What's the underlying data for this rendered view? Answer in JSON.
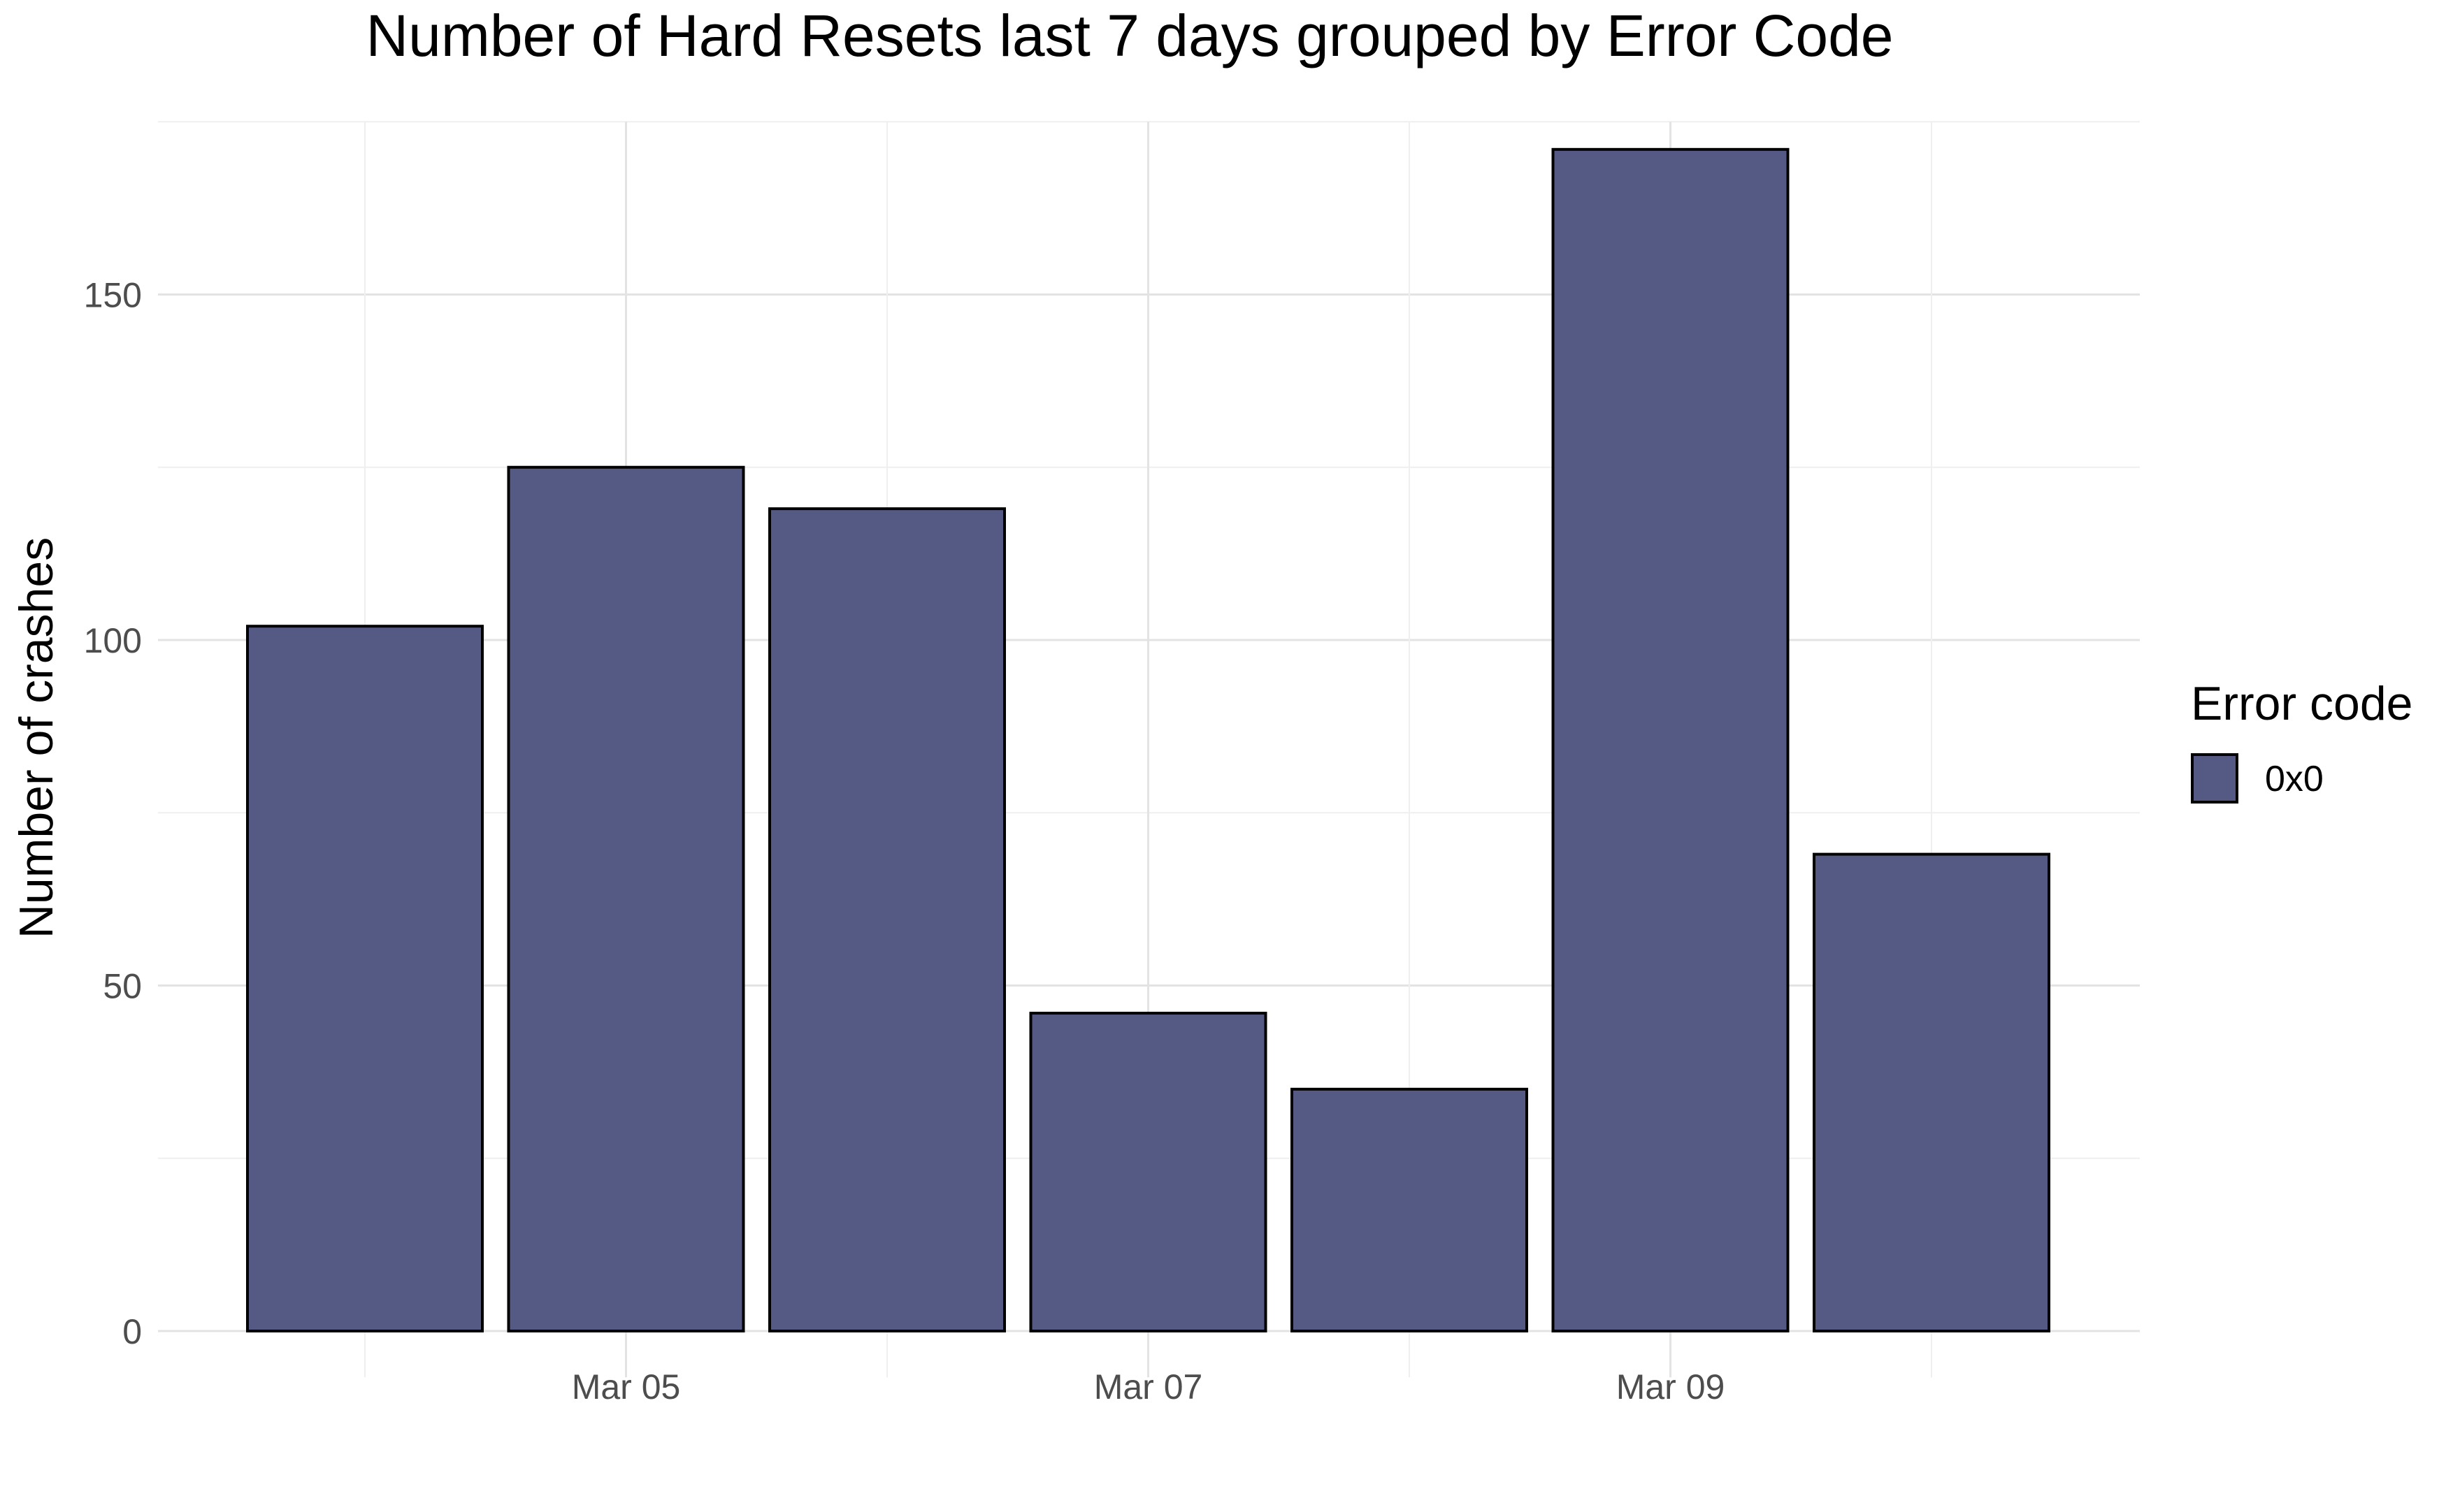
{
  "chart_data": {
    "type": "bar",
    "title": "Number of Hard Resets last 7 days grouped by Error Code",
    "xlabel": "",
    "ylabel": "Number of crashes",
    "categories": [
      "2024-03-04",
      "2024-03-05",
      "2024-03-06",
      "2024-03-07",
      "2024-03-08",
      "2024-03-09",
      "2024-03-10"
    ],
    "x_tick_labels": [
      {
        "category_index": 1,
        "label": "Mar 05"
      },
      {
        "category_index": 3,
        "label": "Mar 07"
      },
      {
        "category_index": 5,
        "label": "Mar 09"
      }
    ],
    "series": [
      {
        "name": "0x0",
        "values": [
          102,
          125,
          119,
          46,
          35,
          171,
          69
        ]
      }
    ],
    "ylim": [
      0,
      175
    ],
    "y_ticks": [
      0,
      50,
      100,
      150
    ],
    "grid": true,
    "legend": {
      "title": "Error code",
      "placement": "right",
      "entries": [
        {
          "label": "0x0",
          "color": "#555a85"
        }
      ]
    },
    "colors": {
      "bar_fill": "#555a85",
      "bar_outline": "#000000",
      "background": "#ffffff"
    }
  }
}
